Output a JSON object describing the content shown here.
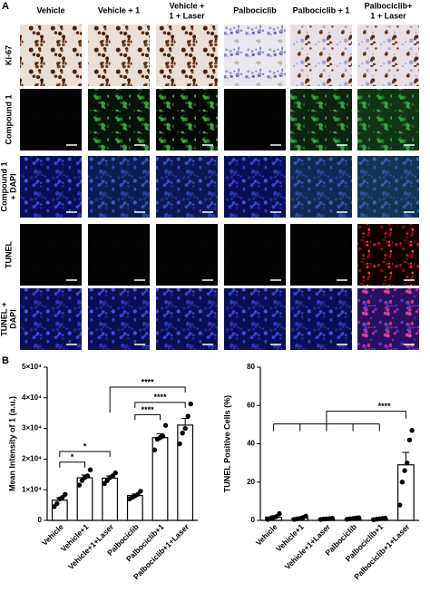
{
  "panel_a": {
    "label": "A",
    "columns": [
      [
        "Vehicle"
      ],
      [
        "Vehicle + 1"
      ],
      [
        "Vehicle +",
        "1 + Laser"
      ],
      [
        "Palbociclib"
      ],
      [
        "Palbociclib + 1"
      ],
      [
        "Palbociclib+",
        "1 + Laser"
      ]
    ],
    "rows": [
      [
        "Ki-67"
      ],
      [
        "Compound 1"
      ],
      [
        "Compound 1",
        "+ DAPI"
      ],
      [
        "TUNEL"
      ],
      [
        "TUNEL +",
        "DAPI"
      ]
    ]
  },
  "panel_b_label": "B",
  "chart_data": [
    {
      "type": "bar",
      "y_label": "Mean Intensity of 1 (a.u.)",
      "categories": [
        "Vehicle",
        "Vehicle+1",
        "Vehicle+1+Laser",
        "Palbociclib",
        "Palbociclib+1",
        "Palbociclib+1+Laser"
      ],
      "values": [
        6600,
        13900,
        13800,
        8100,
        27000,
        31100
      ],
      "errors": [
        800,
        900,
        700,
        500,
        1300,
        2200
      ],
      "points": [
        [
          4500,
          5500,
          7000,
          7500,
          8500
        ],
        [
          11500,
          13000,
          14000,
          14500,
          16500
        ],
        [
          12000,
          13000,
          14000,
          14500,
          15500
        ],
        [
          7000,
          7500,
          8000,
          8500,
          9500
        ],
        [
          23000,
          26500,
          27000,
          27500,
          31000
        ],
        [
          25000,
          28500,
          30000,
          34000,
          38000
        ]
      ],
      "ylim": [
        0,
        50000
      ],
      "yticks": [
        0,
        {
          "value": 10000,
          "label": "1×10⁴"
        },
        {
          "value": 20000,
          "label": "2×10⁴"
        },
        {
          "value": 30000,
          "label": "3×10⁴"
        },
        {
          "value": 40000,
          "label": "4×10⁴"
        },
        {
          "value": 50000,
          "label": "5×10⁴"
        }
      ],
      "annotations": [
        "*",
        "*",
        "****",
        "****",
        "****"
      ]
    },
    {
      "type": "bar",
      "y_label": "TUNEL Positive Cells (%)",
      "categories": [
        "Vehicle",
        "Vehicle+1",
        "Vehicle+1+Laser",
        "Palbociclib",
        "Palbociclib+1",
        "Palbociclib+1+Laser"
      ],
      "values": [
        1.7,
        1.2,
        0.8,
        1.0,
        0.8,
        29
      ],
      "errors": [
        0.6,
        0.4,
        0.2,
        0.3,
        0.2,
        6.5
      ],
      "points": [
        [
          0.5,
          1,
          1.5,
          2,
          3.5
        ],
        [
          0.5,
          0.8,
          1,
          1.5,
          2.2
        ],
        [
          0.5,
          0.7,
          0.8,
          0.9,
          1.1
        ],
        [
          0.6,
          0.8,
          1,
          1.2,
          1.4
        ],
        [
          0.4,
          0.6,
          0.8,
          1,
          1.2
        ],
        [
          8,
          20,
          26,
          30,
          42,
          47
        ]
      ],
      "ylim": [
        0,
        80
      ],
      "yticks": [
        0,
        20,
        40,
        60,
        80
      ],
      "annotations": [
        "****"
      ]
    }
  ]
}
